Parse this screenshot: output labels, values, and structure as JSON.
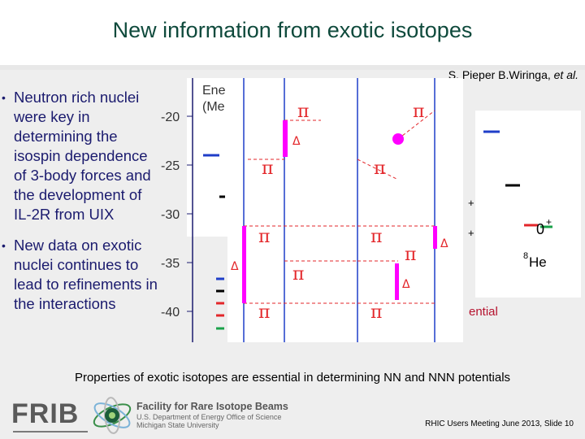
{
  "slide": {
    "title": "New information from exotic isotopes",
    "citation_authors": "S. Pieper B.Wiringa, ",
    "citation_etal": "et al.",
    "bullets": [
      "Neutron rich nuclei were key in determining the isospin dependence of 3-body forces and the development of IL-2R from UIX",
      "New data on exotic nuclei continues to lead to refinements in the interactions"
    ],
    "caption": "Properties of exotic isotopes are essential in determining NN and NNN potentials",
    "footer": {
      "logo_text": "FRIB",
      "org_name": "Facility for Rare Isotope Beams",
      "org_sub1": "U.S. Department of Energy Office of Science",
      "org_sub2": "Michigan State University",
      "slide_ref": "RHIC Users Meeting June 2013, Slide 10"
    }
  },
  "figure": {
    "axis_label_line1": "Ene",
    "axis_label_line2": "(Me",
    "y_ticks": [
      "-20",
      "-25",
      "-30",
      "-35",
      "-40"
    ],
    "pi_symbol": "π",
    "delta_symbol": "Δ",
    "plus_sign": "+",
    "level_label": "0",
    "level_sup": "+",
    "nucleus_mass": "8",
    "nucleus_symbol": "He",
    "fragment_text": "ential",
    "colors": {
      "axis": "#1a1a6e",
      "magenta": "#ff00ff",
      "blue": "#1f3ec8",
      "red": "#e3262a",
      "green": "#1aa24a",
      "black": "#000000"
    }
  }
}
